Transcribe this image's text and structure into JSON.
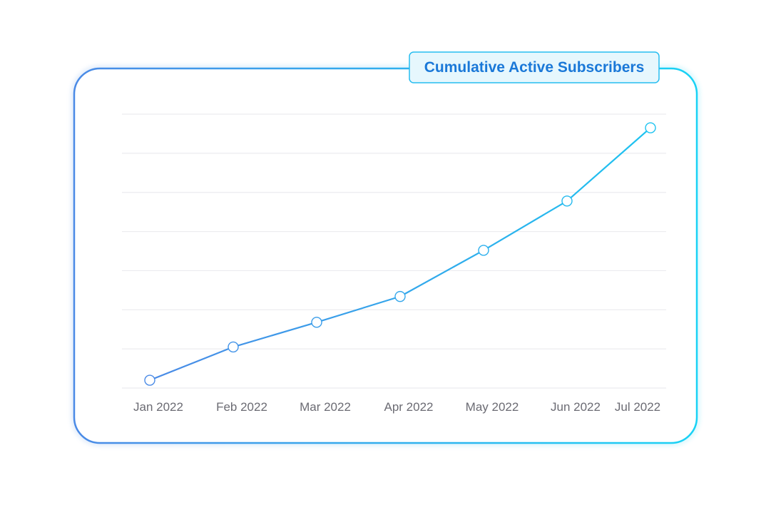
{
  "chart_data": {
    "type": "line",
    "title": "Cumulative Active Subscribers",
    "categories": [
      "Jan 2022",
      "Feb 2022",
      "Mar 2022",
      "Apr 2022",
      "May 2022",
      "Jun 2022",
      "Jul 2022"
    ],
    "series": [
      {
        "values": [
          2,
          10.5,
          16.8,
          23.4,
          35.2,
          47.8,
          66.5
        ]
      }
    ],
    "ylim": [
      0,
      70
    ],
    "grid": true,
    "y_tick_labels_visible": false,
    "colors": {
      "line_start": "#4a8ae6",
      "line_end": "#1ec3f0",
      "frame_start": "#4a8ae6",
      "frame_end": "#18d2f5",
      "grid": "#ececef",
      "title_badge_fill": "#e6f7fd",
      "title_badge_stroke": "#27bdf0",
      "title_text": "#1a78d8",
      "tick_text": "#6b6b73",
      "marker_fill": "#ffffff"
    }
  }
}
